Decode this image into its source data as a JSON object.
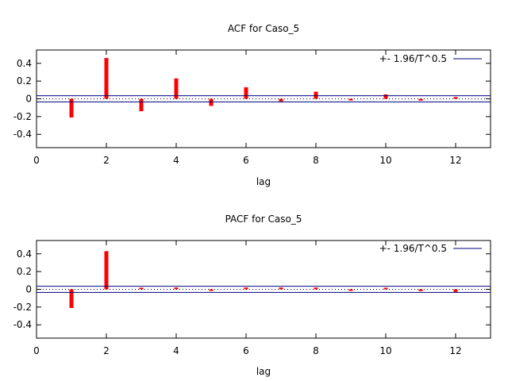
{
  "colors": {
    "bar": "#ff0000",
    "band": "#000080",
    "axis": "#000000",
    "zero": "#000000"
  },
  "chart_data": [
    {
      "type": "bar",
      "title": "ACF for Caso_5",
      "xlabel": "lag",
      "ylabel": "",
      "xlim": [
        0,
        13
      ],
      "ylim": [
        -0.55,
        0.55
      ],
      "xticks": [
        0,
        2,
        4,
        6,
        8,
        10,
        12
      ],
      "yticks": [
        0.4,
        0.2,
        0,
        -0.2,
        -0.4
      ],
      "x": [
        1,
        2,
        3,
        4,
        5,
        6,
        7,
        8,
        9,
        10,
        11,
        12
      ],
      "values": [
        -0.21,
        0.46,
        -0.14,
        0.23,
        -0.08,
        0.13,
        -0.03,
        0.08,
        -0.01,
        0.05,
        -0.02,
        0.02
      ],
      "band": 0.035,
      "legend": "+- 1.96/T^0.5",
      "legend_position": "top-right"
    },
    {
      "type": "bar",
      "title": "PACF for Caso_5",
      "xlabel": "lag",
      "ylabel": "",
      "xlim": [
        0,
        13
      ],
      "ylim": [
        -0.55,
        0.55
      ],
      "xticks": [
        0,
        2,
        4,
        6,
        8,
        10,
        12
      ],
      "yticks": [
        0.4,
        0.2,
        0,
        -0.2,
        -0.4
      ],
      "x": [
        1,
        2,
        3,
        4,
        5,
        6,
        7,
        8,
        9,
        10,
        11,
        12
      ],
      "values": [
        -0.21,
        0.43,
        0.0,
        0.02,
        -0.01,
        0.02,
        0.02,
        0.02,
        -0.01,
        0.01,
        -0.02,
        -0.03
      ],
      "band": 0.035,
      "legend": "+- 1.96/T^0.5",
      "legend_position": "top-right"
    }
  ]
}
